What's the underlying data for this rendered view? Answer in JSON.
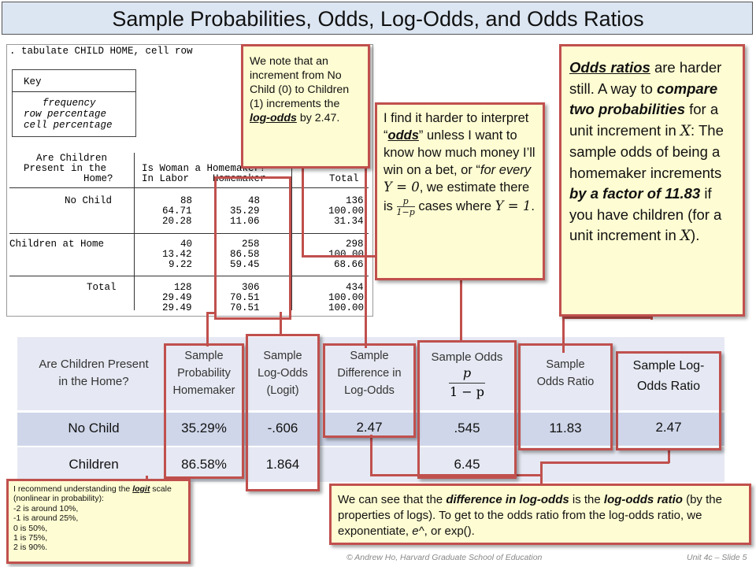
{
  "title": "Sample Probabilities, Odds, Log-Odds, and Odds Ratios",
  "stata": {
    "command": ". tabulate CHILD HOME, cell row",
    "key_title": "Key",
    "key_lines": [
      "frequency",
      "row percentage",
      "cell percentage"
    ],
    "row_var_lines": [
      "Are Children",
      "Present in the",
      "Home?"
    ],
    "col_var_lines": [
      "Is Woman a Homemaker?",
      "In Labor    Homemaker"
    ],
    "total_header": "Total",
    "rows": [
      {
        "label": "No Child",
        "c1": [
          "88",
          "64.71",
          "20.28"
        ],
        "c2": [
          "48",
          "35.29",
          "11.06"
        ],
        "tot": [
          "136",
          "100.00",
          "31.34"
        ]
      },
      {
        "label": "Children at Home",
        "c1": [
          "40",
          "13.42",
          "9.22"
        ],
        "c2": [
          "258",
          "86.58",
          "59.45"
        ],
        "tot": [
          "298",
          "100.00",
          "68.66"
        ]
      },
      {
        "label": "Total",
        "c1": [
          "128",
          "29.49",
          "29.49"
        ],
        "c2": [
          "306",
          "70.51",
          "70.51"
        ],
        "tot": [
          "434",
          "100.00",
          "100.00"
        ]
      }
    ]
  },
  "notes": {
    "logodds_note": "We note that an increment from No Child (0) to Children (1) increments the log-odds by 2.47.",
    "logodds_note_emph": "log-odds",
    "odds_note_1": "I find it harder to interpret “",
    "odds_note_odds": "odds",
    "odds_note_2": "” unless I want to know how much money I’ll win on a bet, or “",
    "odds_note_for": "for every",
    "odds_note_Y0": "Y = 0",
    "odds_note_3": ", we estimate there is",
    "odds_note_frac_num": "p",
    "odds_note_frac_den": "1−p",
    "odds_note_4": "cases where",
    "odds_note_Y1": "Y = 1",
    "odds_note_5": ".",
    "ratio_note_a": "Odds ratios",
    "ratio_note_b": " are harder still.  A way to ",
    "ratio_note_c": "compare two probabilities",
    "ratio_note_d": " for a unit increment in ",
    "ratio_note_X": "X",
    "ratio_note_e": ": The sample odds of being a homemaker increments ",
    "ratio_note_f": "by a factor of 11.83",
    "ratio_note_g": " if you have children (for a unit increment in ",
    "ratio_note_X2": "X",
    "ratio_note_h": ").",
    "logit_note_a": "I recommend understanding the ",
    "logit_note_logit": "logit",
    "logit_note_b": " scale (nonlinear in probability):",
    "logit_note_lines": [
      "-2 is around 10%,",
      "-1 is around 25%,",
      "0 is 50%,",
      "1 is 75%,",
      "2 is 90%."
    ],
    "bottom_note_a": "We can see that the ",
    "bottom_note_b": "difference in log-odds",
    "bottom_note_c": " is the ",
    "bottom_note_d": "log-odds ratio",
    "bottom_note_e": " (by the properties of logs).  To get to the odds ratio from the log-odds ratio, we exponentiate, ",
    "bottom_note_f": "e^",
    "bottom_note_g": ", or exp().",
    "bottom_note_h": ""
  },
  "table": {
    "headers": {
      "present": [
        "Are Children Present",
        "in the Home?"
      ],
      "prob": [
        "Sample",
        "Probability",
        "Homemaker"
      ],
      "logodds": [
        "Sample",
        "Log-Odds",
        "(Logit)"
      ],
      "diff": [
        "Sample",
        "Difference in",
        "Log-Odds"
      ],
      "odds": "Sample Odds",
      "odds_frac_num": "p",
      "odds_frac_den": "1 − p",
      "oddsratio": [
        "Sample",
        "Odds Ratio"
      ],
      "logoddsratio": [
        "Sample Log-",
        "Odds Ratio"
      ]
    },
    "rows": [
      {
        "label": "No Child",
        "prob": "35.29%",
        "logodds": "-.606",
        "diff": "2.47",
        "odds": ".545",
        "oddsratio": "11.83",
        "logoddsratio": "2.47"
      },
      {
        "label": "Children",
        "prob": "86.58%",
        "logodds": "1.864",
        "diff": "",
        "odds": "6.45",
        "oddsratio": "",
        "logoddsratio": ""
      }
    ]
  },
  "footer": {
    "left": "© Andrew Ho, Harvard Graduate School of Education",
    "right": "Unit 4c – Slide 5"
  },
  "colors": {
    "accent_red": "#c0504d",
    "note_bg": "#fefcd2",
    "title_bg": "#dce6f2"
  }
}
